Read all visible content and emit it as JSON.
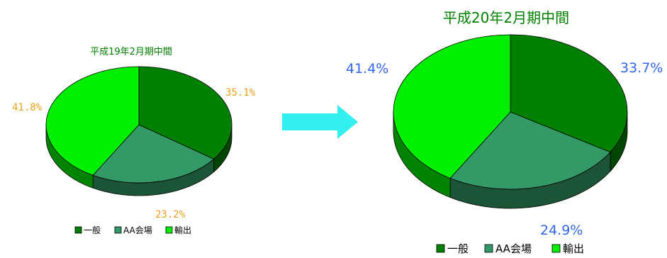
{
  "chart_data": [
    {
      "type": "pie",
      "title": "平成19年2月期中間",
      "categories": [
        "一般",
        "AA会場",
        "輸出"
      ],
      "values": [
        35.1,
        23.2,
        41.8
      ],
      "value_labels": [
        "35.1%",
        "23.2%",
        "41.8%"
      ],
      "colors": [
        "#008000",
        "#339966",
        "#00EE00"
      ],
      "label_color": "#F0A020"
    },
    {
      "type": "pie",
      "title": "平成20年2月期中間",
      "categories": [
        "一般",
        "AA会場",
        "輸出"
      ],
      "values": [
        33.7,
        24.9,
        41.4
      ],
      "value_labels": [
        "33.7%",
        "24.9%",
        "41.4%"
      ],
      "colors": [
        "#008000",
        "#339966",
        "#00EE00"
      ],
      "label_color": "#3366EE"
    }
  ],
  "arrow": {
    "icon": "right-arrow-icon",
    "color": "#33F0F0"
  }
}
